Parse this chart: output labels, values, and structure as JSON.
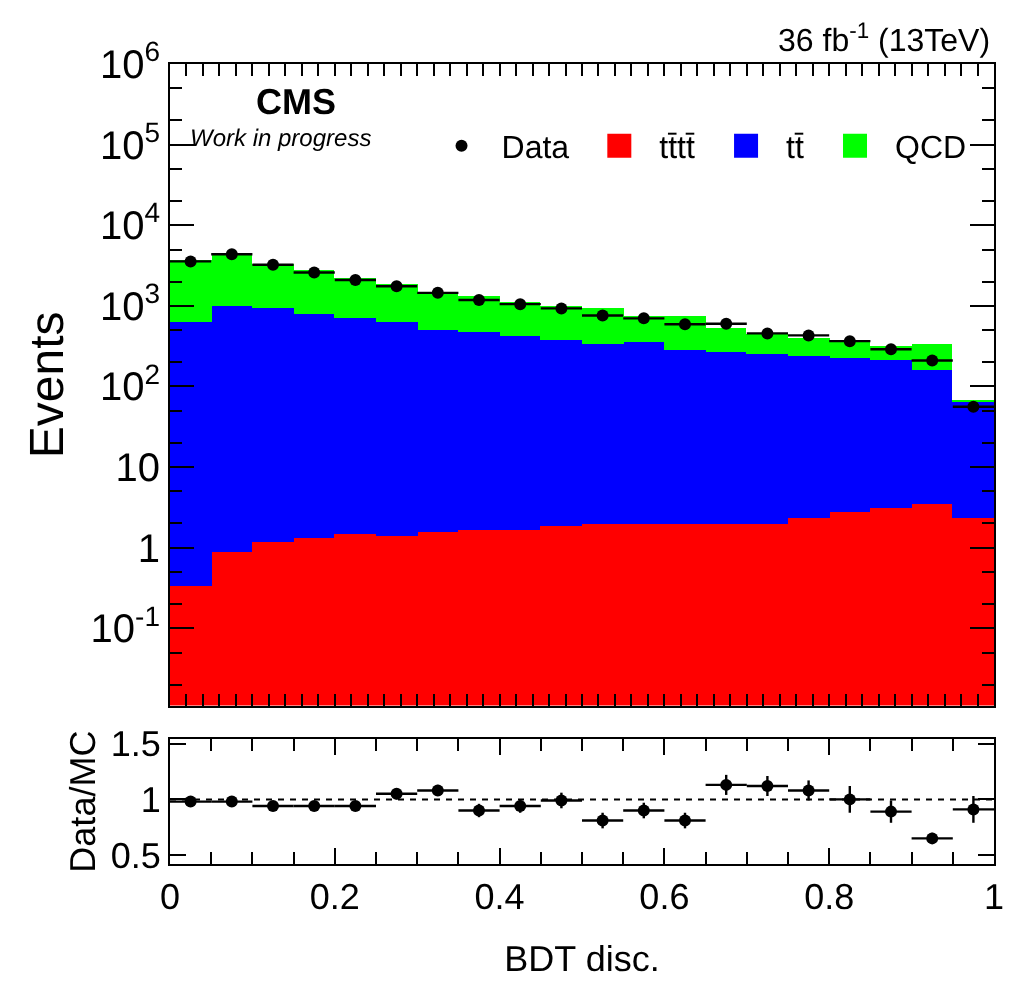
{
  "chart_data": [
    {
      "type": "bar",
      "title": "36 fb$^{-1}$ (13TeV)",
      "ylabel": "Events",
      "annotations": [
        "CMS",
        "Work in progress"
      ],
      "x": [
        0.025,
        0.075,
        0.125,
        0.175,
        0.225,
        0.275,
        0.325,
        0.375,
        0.425,
        0.475,
        0.525,
        0.575,
        0.625,
        0.675,
        0.725,
        0.775,
        0.825,
        0.875,
        0.925,
        0.975
      ],
      "stacked": true,
      "log": "y",
      "legend": "top right",
      "tick_labels": "y",
      "xlim": [
        0,
        1
      ],
      "xticks": [
        {
          "value": 0,
          "label": null
        },
        {
          "value": 0.1,
          "label": null
        },
        {
          "value": 0.2,
          "label": null
        },
        {
          "value": 0.3,
          "label": null
        },
        {
          "value": 0.4,
          "label": null
        },
        {
          "value": 0.5,
          "label": null
        },
        {
          "value": 0.6,
          "label": null
        },
        {
          "value": 0.7,
          "label": null
        },
        {
          "value": 0.8,
          "label": null
        },
        {
          "value": 0.9,
          "label": null
        },
        {
          "value": 1,
          "label": null
        }
      ],
      "ylim": [
        0.011,
        1000000
      ],
      "yticks": [
        {
          "value": 0.1,
          "label": "10$^{-1}$"
        },
        1,
        10,
        {
          "value": 100,
          "label": "10$^{2}$"
        },
        {
          "value": 1000,
          "label": "10$^{3}$"
        },
        {
          "value": 10000,
          "label": "10$^{4}$"
        },
        {
          "value": 100000,
          "label": "10$^{5}$"
        },
        {
          "value": 1000000,
          "label": "10$^{6}$"
        }
      ],
      "series": [
        {
          "name": "Data",
          "type": "scatter",
          "marker": "circle",
          "color": "#000000",
          "values": [
            3560,
            4370,
            3240,
            2590,
            2090,
            1750,
            1450,
            1180,
            1050,
            930,
            760,
            700,
            590,
            600,
            455,
            430,
            365,
            290,
            210,
            56
          ],
          "xerrors": [
            0.025,
            0.025,
            0.025,
            0.025,
            0.025,
            0.025,
            0.025,
            0.025,
            0.025,
            0.025,
            0.025,
            0.025,
            0.025,
            0.025,
            0.025,
            0.025,
            0.025,
            0.025,
            0.025,
            0.025
          ]
        },
        {
          "name": "tt̄tt̄",
          "color": "#ff0000",
          "values": [
            0.34,
            0.91,
            1.18,
            1.3,
            1.5,
            1.37,
            1.54,
            1.63,
            1.63,
            1.82,
            1.92,
            2.0,
            2.0,
            1.97,
            2.0,
            2.3,
            2.85,
            3.1,
            3.4,
            2.4
          ]
        },
        {
          "name": "tt̄",
          "color": "#0000ff",
          "values": [
            630,
            1019,
            929,
            779,
            698,
            629,
            508,
            468,
            428,
            378,
            343,
            348,
            283,
            273,
            253,
            238,
            222,
            212,
            157,
            62
          ]
        },
        {
          "name": "QCD",
          "color": "#00ff00",
          "values": [
            3070,
            3430,
            2450,
            2020,
            1540,
            1230,
            1000,
            850,
            670,
            600,
            605,
            410,
            475,
            255,
            200,
            160,
            130,
            100,
            180,
            2
          ]
        }
      ]
    },
    {
      "type": "scatter",
      "xlabel": "BDT disc.",
      "ylabel": "Data/MC",
      "marker": "circle",
      "x": [
        0.025,
        0.075,
        0.125,
        0.175,
        0.225,
        0.275,
        0.325,
        0.375,
        0.425,
        0.475,
        0.525,
        0.575,
        0.625,
        0.675,
        0.725,
        0.775,
        0.825,
        0.875,
        0.925,
        0.975
      ],
      "xlim": [
        0,
        1
      ],
      "xticks": [
        0,
        0.2,
        0.4,
        0.6,
        0.8,
        1
      ],
      "ylim": [
        0.42,
        1.54
      ],
      "yticks": [
        0.5,
        1,
        1.5
      ],
      "series": [
        {
          "color": "#000000",
          "values": [
            0.98,
            0.98,
            0.94,
            0.94,
            0.94,
            1.05,
            1.08,
            0.9,
            0.94,
            0.99,
            0.81,
            0.9,
            0.81,
            1.13,
            1.12,
            1.08,
            1.0,
            0.89,
            0.65,
            0.91
          ],
          "errors": [
            0.03,
            0.03,
            0.03,
            0.03,
            0.04,
            0.05,
            0.05,
            0.06,
            0.06,
            0.07,
            0.07,
            0.07,
            0.07,
            0.09,
            0.09,
            0.09,
            0.12,
            0.1,
            0.05,
            0.12
          ],
          "xerrors": [
            0.025,
            0.025,
            0.025,
            0.025,
            0.025,
            0.025,
            0.025,
            0.025,
            0.025,
            0.025,
            0.025,
            0.025,
            0.025,
            0.025,
            0.025,
            0.025,
            0.025,
            0.025,
            0.025,
            0.025
          ]
        }
      ],
      "ref_lines": [
        {
          "axis": "y",
          "value": 1,
          "line_style": "dotted",
          "color": "#000000"
        }
      ]
    }
  ]
}
